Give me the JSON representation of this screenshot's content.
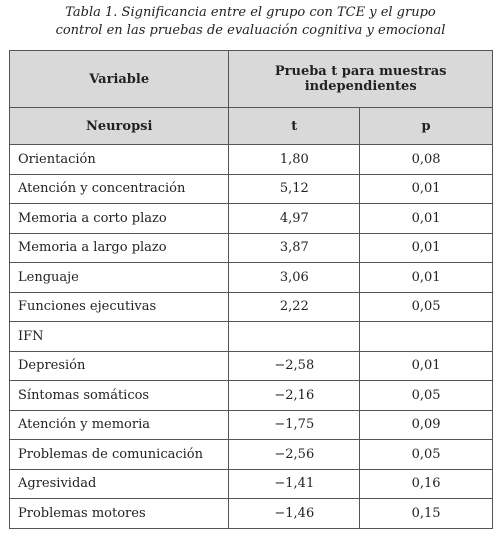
{
  "caption": {
    "lines": [
      "Tabla 1. Significancia entre el grupo con TCE y el grupo",
      "control en las pruebas de evaluación cognitiva y emocional"
    ]
  },
  "table": {
    "header": {
      "variable": "Variable",
      "test": "Prueba t para muestras independientes",
      "section": "Neuropsi",
      "t": "t",
      "p": "p"
    },
    "rows": [
      [
        "Orientación",
        "1,80",
        "0,08"
      ],
      [
        "Atención y concentración",
        "5,12",
        "0,01"
      ],
      [
        "Memoria a corto plazo",
        "4,97",
        "0,01"
      ],
      [
        "Memoria a largo plazo",
        "3,87",
        "0,01"
      ],
      [
        "Lenguaje",
        "3,06",
        "0,01"
      ],
      [
        "Funciones ejecutivas",
        "2,22",
        "0,05"
      ],
      [
        "IFN",
        null,
        null
      ],
      [
        "Depresión",
        "−2,58",
        "0,01"
      ],
      [
        "Síntomas somáticos",
        "−2,16",
        "0,05"
      ],
      [
        "Atención y memoria",
        "−1,75",
        "0,09"
      ],
      [
        "Problemas de comunicación",
        "−2,56",
        "0,05"
      ],
      [
        "Agresividad",
        "−1,41",
        "0,16"
      ],
      [
        "Problemas motores",
        "−1,46",
        "0,15"
      ]
    ]
  }
}
